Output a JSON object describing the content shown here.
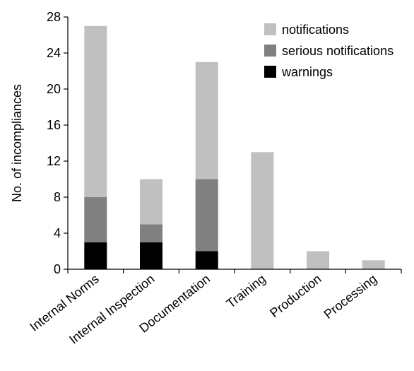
{
  "chart_data": {
    "type": "bar",
    "stacked": true,
    "title": "",
    "xlabel": "",
    "ylabel": "No. of incompliances",
    "ylim": [
      0,
      28
    ],
    "yticks": [
      0,
      4,
      8,
      12,
      16,
      20,
      24,
      28
    ],
    "grid": false,
    "legend_position": "top-right",
    "categories": [
      "Internal Norms",
      "Internal Inspection",
      "Documentation",
      "Training",
      "Production",
      "Processing"
    ],
    "series": [
      {
        "name": "warnings",
        "color": "#000000",
        "values": [
          3,
          3,
          2,
          0,
          0,
          0
        ]
      },
      {
        "name": "serious notifications",
        "color": "#808080",
        "values": [
          5,
          2,
          8,
          0,
          0,
          0
        ]
      },
      {
        "name": "notifications",
        "color": "#c0c0c0",
        "values": [
          19,
          5,
          13,
          13,
          2,
          1
        ]
      }
    ],
    "legend_order": [
      "notifications",
      "serious notifications",
      "warnings"
    ]
  }
}
